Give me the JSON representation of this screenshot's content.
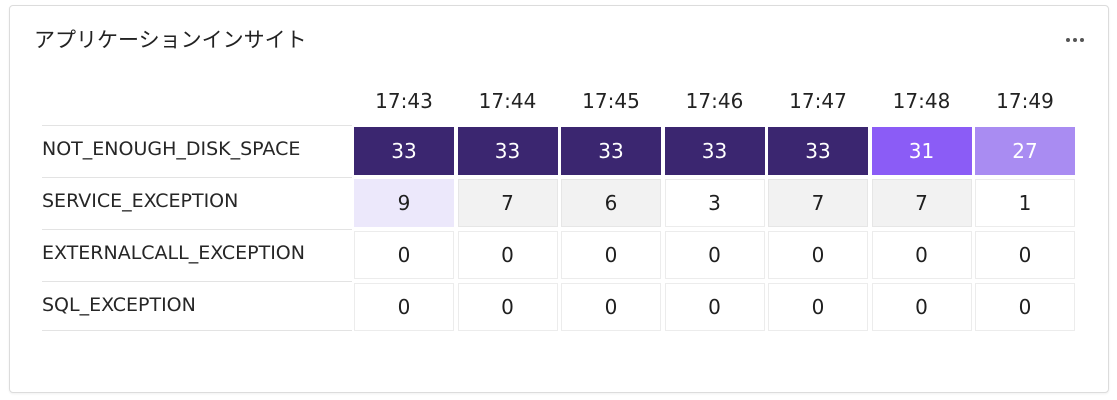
{
  "card": {
    "title": "アプリケーションインサイト",
    "more_icon": "more-horizontal-icon"
  },
  "colors": {
    "scale": [
      "#ffffff",
      "#f2f2f2",
      "#ece8fb",
      "#a98cf2",
      "#8b5cf6",
      "#3b2670"
    ],
    "text_dark": "#1f1f1f",
    "text_light": "#ffffff"
  },
  "chart_data": {
    "type": "heatmap",
    "title": "アプリケーションインサイト",
    "x": [
      "17:43",
      "17:44",
      "17:45",
      "17:46",
      "17:47",
      "17:48",
      "17:49"
    ],
    "y": [
      "NOT_ENOUGH_DISK_SPACE",
      "SERVICE_EXCEPTION",
      "EXTERNALCALL_EXCEPTION",
      "SQL_EXCEPTION"
    ],
    "values": [
      [
        33,
        33,
        33,
        33,
        33,
        31,
        27
      ],
      [
        9,
        7,
        6,
        3,
        7,
        7,
        1
      ],
      [
        0,
        0,
        0,
        0,
        0,
        0,
        0
      ],
      [
        0,
        0,
        0,
        0,
        0,
        0,
        0
      ]
    ]
  }
}
